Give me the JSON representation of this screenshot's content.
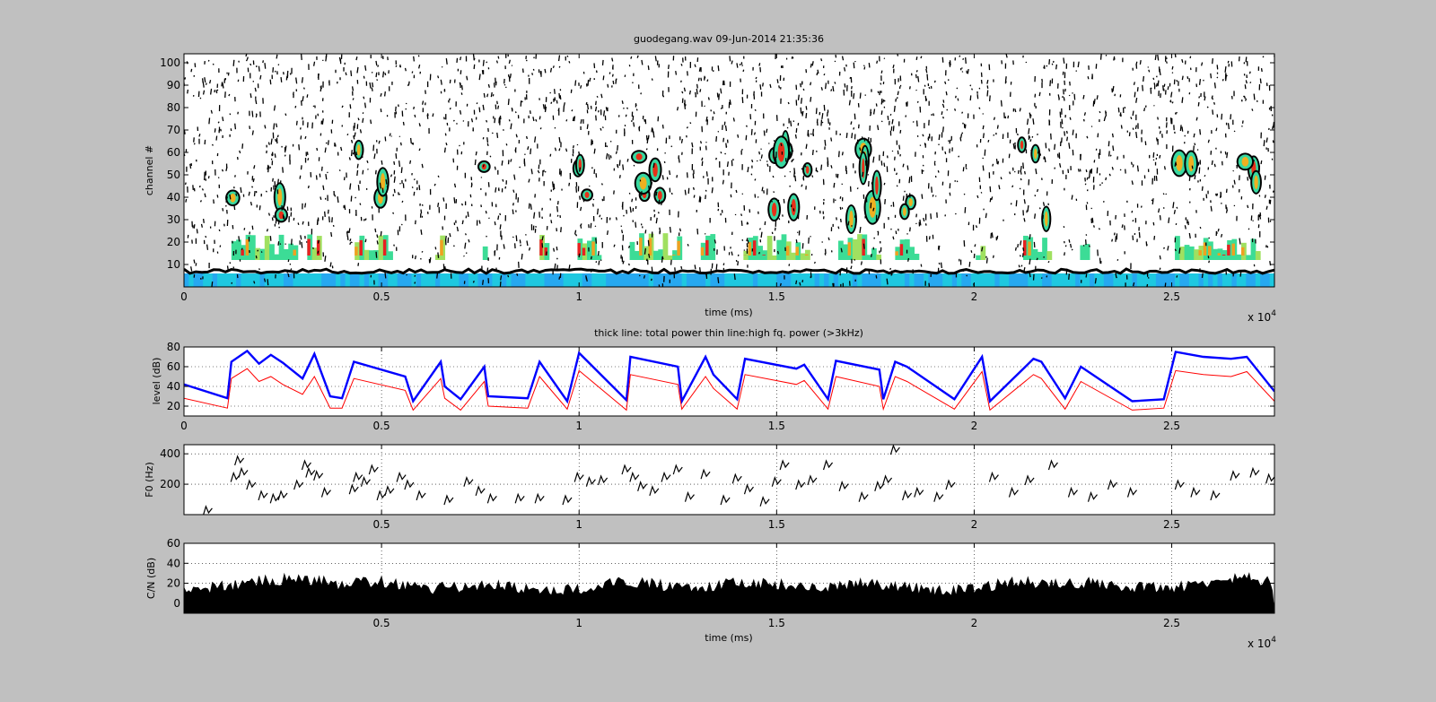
{
  "figure": {
    "background": "#c0c0c0",
    "title": "guodegang.wav  09-Jun-2014 21:35:36",
    "subtitle": "thick line: total power thin line:high fq. power (>3kHz)"
  },
  "chart_data": [
    {
      "id": "spectrogram",
      "type": "heatmap",
      "title": "guodegang.wav  09-Jun-2014 21:35:36",
      "xlabel": "time (ms)",
      "ylabel": "channel #",
      "xlim": [
        0,
        27600
      ],
      "ylim": [
        0,
        104
      ],
      "x_ticks": [
        0,
        5000,
        10000,
        15000,
        20000,
        25000
      ],
      "x_tick_labels": [
        "0",
        "0.5",
        "1",
        "1.5",
        "2",
        "2.5"
      ],
      "y_ticks": [
        10,
        20,
        30,
        40,
        50,
        60,
        70,
        80,
        90,
        100
      ],
      "y_tick_labels": [
        "10",
        "20",
        "30",
        "40",
        "50",
        "60",
        "70",
        "80",
        "90",
        "100"
      ],
      "x_exponent": "x 10",
      "x_exponent_power": "4",
      "colormap": "jet",
      "background": "#ffffff"
    },
    {
      "id": "level",
      "type": "line",
      "xlabel": "",
      "ylabel": "level (dB)",
      "xlim": [
        0,
        27600
      ],
      "ylim": [
        10,
        80
      ],
      "grid": true,
      "x_ticks": [
        0,
        5000,
        10000,
        15000,
        20000,
        25000
      ],
      "x_tick_labels": [
        "0",
        "0.5",
        "1",
        "1.5",
        "2",
        "2.5"
      ],
      "y_ticks": [
        20,
        40,
        60,
        80
      ],
      "y_tick_labels": [
        "20",
        "40",
        "60",
        "80"
      ],
      "series": [
        {
          "color": "#0000ff",
          "x": [
            0,
            1100,
            1200,
            1600,
            1900,
            2200,
            2500,
            3000,
            3300,
            3700,
            4000,
            4300,
            5600,
            5800,
            6500,
            6600,
            7000,
            7600,
            7700,
            8700,
            9000,
            9700,
            10000,
            11200,
            11300,
            12500,
            12600,
            13200,
            13400,
            14000,
            14200,
            15500,
            15700,
            16300,
            16500,
            17600,
            17700,
            18000,
            18300,
            19500,
            20200,
            20400,
            21500,
            21700,
            22300,
            22700,
            24000,
            24800,
            25100,
            25800,
            26500,
            26900,
            27600
          ],
          "y": [
            42,
            28,
            65,
            76,
            63,
            72,
            64,
            48,
            73,
            30,
            28,
            65,
            50,
            25,
            65,
            40,
            27,
            60,
            30,
            28,
            65,
            25,
            74,
            26,
            70,
            60,
            25,
            70,
            52,
            27,
            68,
            58,
            62,
            27,
            66,
            57,
            27,
            65,
            60,
            27,
            70,
            25,
            68,
            65,
            28,
            60,
            25,
            27,
            75,
            70,
            68,
            70,
            35
          ]
        },
        {
          "color": "#ff0000",
          "x": [
            0,
            1100,
            1200,
            1600,
            1900,
            2200,
            2500,
            3000,
            3300,
            3700,
            4000,
            4300,
            5600,
            5800,
            6500,
            6600,
            7000,
            7600,
            7700,
            8700,
            9000,
            9700,
            10000,
            11200,
            11300,
            12500,
            12600,
            13200,
            13400,
            14000,
            14200,
            15500,
            15700,
            16300,
            16500,
            17600,
            17700,
            18000,
            18300,
            19500,
            20200,
            20400,
            21500,
            21700,
            22300,
            22700,
            24000,
            24800,
            25100,
            25800,
            26500,
            26900,
            27600
          ],
          "y": [
            28,
            18,
            48,
            58,
            45,
            50,
            42,
            32,
            50,
            18,
            18,
            48,
            36,
            16,
            48,
            28,
            16,
            45,
            20,
            18,
            50,
            17,
            56,
            16,
            52,
            42,
            17,
            50,
            38,
            17,
            52,
            42,
            46,
            17,
            50,
            40,
            17,
            50,
            45,
            17,
            55,
            16,
            52,
            48,
            17,
            45,
            16,
            18,
            56,
            52,
            50,
            55,
            25
          ]
        }
      ]
    },
    {
      "id": "f0",
      "type": "scatter",
      "xlabel": "",
      "ylabel": "F0 (Hz)",
      "xlim": [
        0,
        27600
      ],
      "ylim": [
        0,
        460
      ],
      "grid": true,
      "x_ticks": [
        5000,
        10000,
        15000,
        20000,
        25000
      ],
      "x_tick_labels": [
        "0.5",
        "1",
        "1.5",
        "2",
        "2.5"
      ],
      "y_ticks": [
        200,
        400
      ],
      "y_tick_labels": [
        "200",
        "400"
      ],
      "series": [
        {
          "color": "#000000",
          "x": [
            600,
            1300,
            1400,
            1500,
            1700,
            2000,
            2300,
            2500,
            2900,
            3100,
            3200,
            3400,
            3600,
            4300,
            4400,
            4600,
            4800,
            5000,
            5200,
            5500,
            5700,
            6000,
            6700,
            7200,
            7500,
            7800,
            8500,
            9000,
            9700,
            10000,
            10300,
            10600,
            11200,
            11400,
            11600,
            11900,
            12200,
            12500,
            12800,
            13200,
            13700,
            14000,
            14300,
            14700,
            15000,
            15200,
            15600,
            15900,
            16300,
            16700,
            17200,
            17600,
            17800,
            18000,
            18300,
            18600,
            19100,
            19400,
            20500,
            21000,
            21400,
            22000,
            22500,
            23000,
            23500,
            24000,
            25200,
            25600,
            26100,
            26600,
            27100,
            27500
          ],
          "y": [
            30,
            250,
            360,
            280,
            200,
            130,
            110,
            130,
            200,
            330,
            280,
            260,
            150,
            170,
            250,
            220,
            300,
            130,
            160,
            250,
            200,
            130,
            100,
            220,
            160,
            110,
            110,
            110,
            100,
            250,
            220,
            230,
            300,
            250,
            190,
            160,
            250,
            300,
            120,
            270,
            100,
            240,
            170,
            90,
            220,
            330,
            200,
            230,
            330,
            190,
            120,
            190,
            230,
            430,
            130,
            150,
            120,
            200,
            250,
            150,
            230,
            330,
            150,
            120,
            200,
            150,
            200,
            150,
            130,
            260,
            280,
            240
          ]
        }
      ]
    },
    {
      "id": "cn",
      "type": "area",
      "xlabel": "time (ms)",
      "ylabel": "C/N (dB)",
      "xlim": [
        0,
        27600
      ],
      "ylim": [
        -10,
        60
      ],
      "grid": true,
      "x_ticks": [
        5000,
        10000,
        15000,
        20000,
        25000
      ],
      "x_tick_labels": [
        "0.5",
        "1",
        "1.5",
        "2",
        "2.5"
      ],
      "y_ticks": [
        0,
        20,
        40,
        60
      ],
      "y_tick_labels": [
        "0",
        "20",
        "40",
        "60"
      ],
      "x_exponent": "x 10",
      "x_exponent_power": "4",
      "series": [
        {
          "color": "#000000",
          "x": [
            0,
            1000,
            2000,
            3000,
            4000,
            5000,
            6000,
            7000,
            8000,
            9000,
            10000,
            11000,
            12000,
            13000,
            14000,
            15000,
            16000,
            17000,
            18000,
            19000,
            20000,
            21000,
            22000,
            23000,
            24000,
            25000,
            26000,
            27000,
            27600
          ],
          "y": [
            18,
            22,
            28,
            30,
            24,
            28,
            20,
            22,
            24,
            18,
            20,
            28,
            24,
            22,
            26,
            24,
            20,
            26,
            22,
            18,
            20,
            28,
            24,
            26,
            22,
            20,
            28,
            32,
            24
          ]
        }
      ]
    }
  ]
}
